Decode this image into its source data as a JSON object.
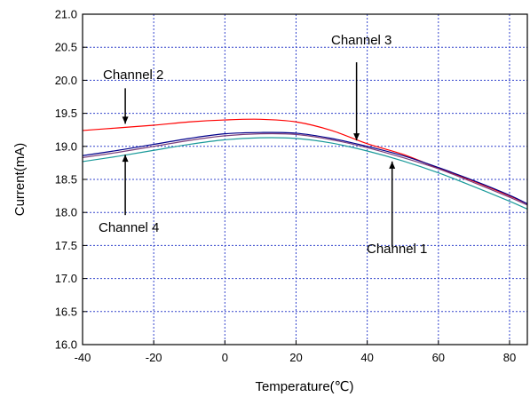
{
  "chart_data": {
    "type": "line",
    "title": "",
    "xlabel": "Temperature(℃)",
    "ylabel": "Current(mA)",
    "xlim": [
      -40,
      85
    ],
    "ylim": [
      16.0,
      21.0
    ],
    "xticks": [
      -40,
      -20,
      0,
      20,
      40,
      60,
      80
    ],
    "yticks": [
      16.0,
      16.5,
      17.0,
      17.5,
      18.0,
      18.5,
      19.0,
      19.5,
      20.0,
      20.5,
      21.0
    ],
    "grid": true,
    "x": [
      -40,
      -30,
      -20,
      -10,
      0,
      10,
      20,
      30,
      40,
      50,
      60,
      70,
      80,
      85
    ],
    "series": [
      {
        "name": "Channel 2",
        "color": "#ff0000",
        "values": [
          19.24,
          19.28,
          19.32,
          19.37,
          19.4,
          19.41,
          19.37,
          19.24,
          19.04,
          18.88,
          18.67,
          18.47,
          18.25,
          18.13
        ]
      },
      {
        "name": "Channel 3",
        "color": "#00008b",
        "values": [
          18.86,
          18.94,
          19.03,
          19.12,
          19.19,
          19.21,
          19.2,
          19.12,
          19.0,
          18.86,
          18.68,
          18.48,
          18.26,
          18.13
        ]
      },
      {
        "name": "Channel 4",
        "color": "#7b3f7b",
        "values": [
          18.83,
          18.91,
          19.0,
          19.09,
          19.16,
          19.19,
          19.18,
          19.1,
          18.98,
          18.83,
          18.66,
          18.45,
          18.23,
          18.11
        ]
      },
      {
        "name": "Channel 1",
        "color": "#1a9a9a",
        "values": [
          18.77,
          18.85,
          18.94,
          19.03,
          19.1,
          19.13,
          19.12,
          19.05,
          18.93,
          18.78,
          18.6,
          18.39,
          18.17,
          18.05
        ]
      }
    ],
    "annotations": [
      {
        "text": "Channel 2",
        "series": "Channel 2",
        "arrow_x": -28
      },
      {
        "text": "Channel 3",
        "series": "Channel 3",
        "arrow_x": 37
      },
      {
        "text": "Channel 4",
        "series": "Channel 4",
        "arrow_x": -28
      },
      {
        "text": "Channel 1",
        "series": "Channel 1",
        "arrow_x": 47
      }
    ]
  }
}
